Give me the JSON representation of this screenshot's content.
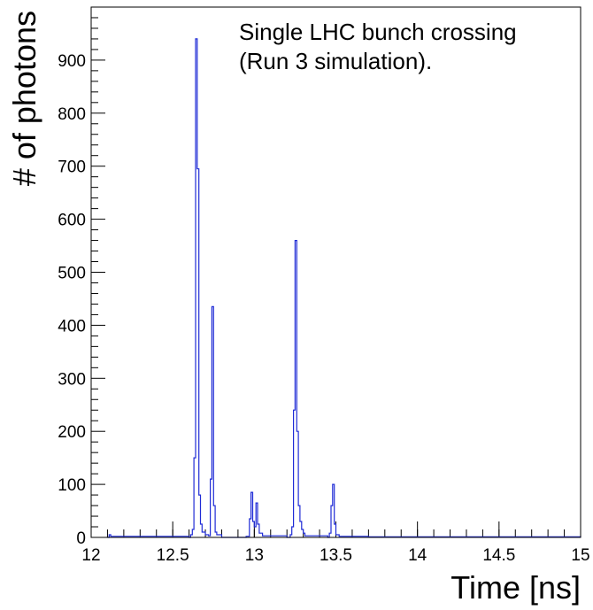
{
  "chart_data": {
    "type": "histogram",
    "title": "",
    "xlabel": "Time [ns]",
    "ylabel": "# of photons",
    "annotation": [
      "Single LHC bunch crossing",
      "(Run 3 simulation)."
    ],
    "xlim": [
      12,
      15
    ],
    "ylim": [
      0,
      1000
    ],
    "x_ticks": [
      12,
      12.5,
      13,
      13.5,
      14,
      14.5,
      15
    ],
    "x_tick_labels": [
      "12",
      "12.5",
      "13",
      "13.5",
      "14",
      "14.5",
      "15"
    ],
    "y_ticks": [
      0,
      100,
      200,
      300,
      400,
      500,
      600,
      700,
      800,
      900
    ],
    "y_tick_labels": [
      "0",
      "100",
      "200",
      "300",
      "400",
      "500",
      "600",
      "700",
      "800",
      "900"
    ],
    "line_color": "#1f2bd6",
    "grid": false,
    "series": [
      {
        "x": [
          12.1,
          12.11,
          12.12,
          12.6,
          12.61,
          12.62,
          12.63,
          12.64,
          12.65,
          12.66,
          12.67,
          12.68,
          12.7,
          12.72,
          12.73,
          12.74,
          12.75,
          12.76,
          12.77,
          12.8,
          12.95,
          12.97,
          12.98,
          12.99,
          13.0,
          13.01,
          13.02,
          13.03,
          13.05,
          13.2,
          13.22,
          13.23,
          13.24,
          13.25,
          13.26,
          13.27,
          13.28,
          13.29,
          13.3,
          13.31,
          13.45,
          13.46,
          13.47,
          13.48,
          13.49,
          13.5,
          13.52,
          13.7,
          14.3,
          15.0
        ],
        "y": [
          0,
          5,
          2,
          0,
          5,
          15,
          150,
          940,
          695,
          80,
          25,
          10,
          5,
          3,
          110,
          435,
          60,
          10,
          5,
          0,
          2,
          35,
          85,
          30,
          20,
          65,
          25,
          8,
          3,
          0,
          5,
          20,
          240,
          560,
          200,
          60,
          30,
          15,
          8,
          3,
          0,
          8,
          60,
          100,
          25,
          5,
          2,
          1,
          1,
          0
        ]
      }
    ]
  }
}
